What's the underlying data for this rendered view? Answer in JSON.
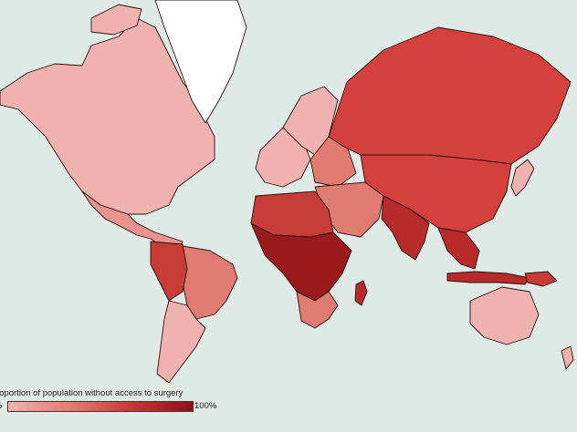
{
  "legend": {
    "title": "roportion of population without access to surgery",
    "min_label": "%",
    "max_label": "100%"
  },
  "colors": {
    "ocean": "#dfeae6",
    "greenland": "#ffffff",
    "very_low": "#f0b2ae",
    "low": "#e8938d",
    "medium": "#e07b72",
    "high": "#d4413d",
    "very_high": "#b92a2a",
    "highest": "#9a1a1e",
    "border": "#2a1010"
  },
  "regions": [
    {
      "name": "north-america",
      "level": 0.12
    },
    {
      "name": "greenland",
      "level": null
    },
    {
      "name": "mexico-central-america",
      "level": 0.45
    },
    {
      "name": "south-america-south",
      "level": 0.18
    },
    {
      "name": "brazil",
      "level": 0.35
    },
    {
      "name": "andes-north",
      "level": 0.7
    },
    {
      "name": "western-europe",
      "level": 0.15
    },
    {
      "name": "scandinavia",
      "level": 0.12
    },
    {
      "name": "eastern-europe",
      "level": 0.5
    },
    {
      "name": "russia",
      "level": 0.72
    },
    {
      "name": "china-central-asia",
      "level": 0.73
    },
    {
      "name": "middle-east",
      "level": 0.55
    },
    {
      "name": "north-africa",
      "level": 0.7
    },
    {
      "name": "sub-saharan-africa",
      "level": 0.95
    },
    {
      "name": "southern-africa",
      "level": 0.6
    },
    {
      "name": "south-asia",
      "level": 0.88
    },
    {
      "name": "southeast-asia",
      "level": 0.85
    },
    {
      "name": "japan",
      "level": 0.05
    },
    {
      "name": "australia",
      "level": 0.1
    },
    {
      "name": "madagascar",
      "level": 0.9
    }
  ]
}
